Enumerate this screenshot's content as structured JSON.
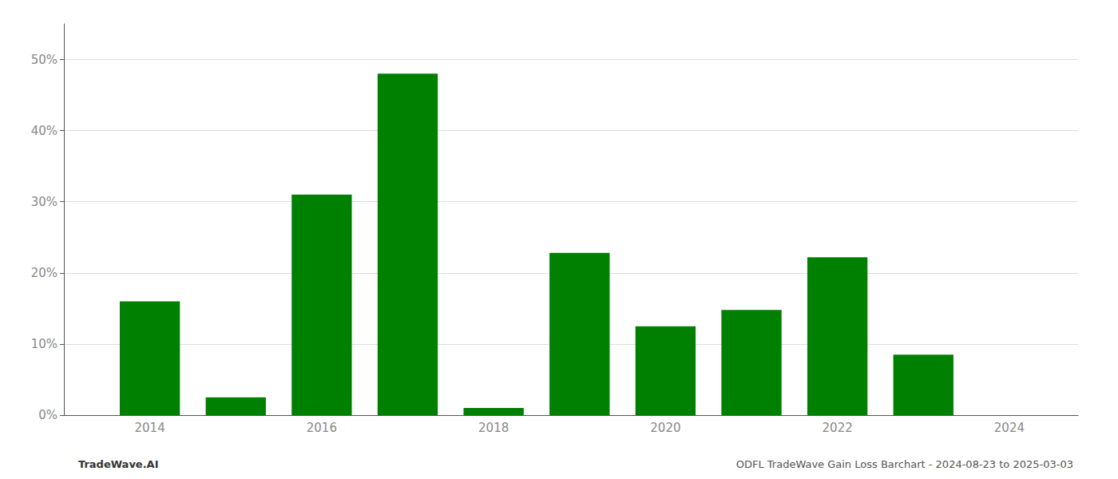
{
  "chart_data": {
    "type": "bar",
    "x": [
      2014,
      2015,
      2016,
      2017,
      2018,
      2019,
      2020,
      2021,
      2022,
      2023
    ],
    "values": [
      0.16,
      0.025,
      0.31,
      0.48,
      0.01,
      0.228,
      0.125,
      0.148,
      0.222,
      0.085
    ],
    "color": "#008000",
    "xlim": [
      2013.0,
      2024.8
    ],
    "xticks": [
      2014,
      2016,
      2018,
      2020,
      2022,
      2024
    ],
    "ylim": [
      0,
      0.55
    ],
    "yticks": [
      {
        "value": 0.0,
        "label": "0%"
      },
      {
        "value": 0.1,
        "label": "10%"
      },
      {
        "value": 0.2,
        "label": "20%"
      },
      {
        "value": 0.3,
        "label": "30%"
      },
      {
        "value": 0.4,
        "label": "40%"
      },
      {
        "value": 0.5,
        "label": "50%"
      }
    ],
    "grid": true,
    "annotations": [
      "TradeWave.AI",
      "ODFL TradeWave Gain Loss Barchart - 2024-08-23 to 2025-03-03"
    ]
  }
}
